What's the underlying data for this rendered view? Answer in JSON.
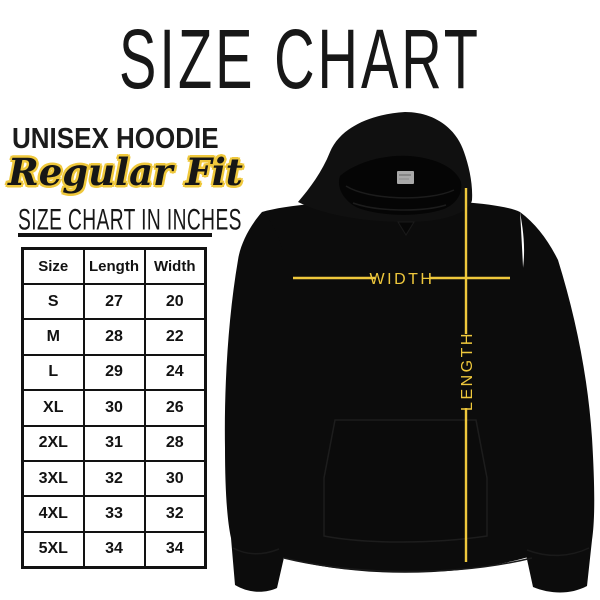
{
  "title": "SIZE CHART",
  "product": {
    "name": "UNISEX HOODIE",
    "fit": "Regular Fit"
  },
  "table_caption": "SIZE CHART IN INCHES",
  "size_table": {
    "columns": [
      "Size",
      "Length",
      "Width"
    ],
    "rows": [
      [
        "S",
        "27",
        "20"
      ],
      [
        "M",
        "28",
        "22"
      ],
      [
        "L",
        "29",
        "24"
      ],
      [
        "XL",
        "30",
        "26"
      ],
      [
        "2XL",
        "31",
        "28"
      ],
      [
        "3XL",
        "32",
        "30"
      ],
      [
        "4XL",
        "33",
        "32"
      ],
      [
        "5XL",
        "34",
        "34"
      ]
    ]
  },
  "measurements": {
    "width_label": "WIDTH",
    "length_label": "LENGTH"
  },
  "colors": {
    "accent_yellow": "#EFC83C",
    "ink_black": "#141414",
    "hoodie_black": "#0c0c0c",
    "tag_gray": "#a9a9a9"
  },
  "chart_data": {
    "type": "table",
    "title": "SIZE CHART",
    "subtitle": "UNISEX HOODIE — Regular Fit",
    "units": "inches",
    "columns": [
      "Size",
      "Length",
      "Width"
    ],
    "rows": [
      [
        "S",
        27,
        20
      ],
      [
        "M",
        28,
        22
      ],
      [
        "L",
        29,
        24
      ],
      [
        "XL",
        30,
        26
      ],
      [
        "2XL",
        31,
        28
      ],
      [
        "3XL",
        32,
        30
      ],
      [
        "4XL",
        33,
        32
      ],
      [
        "5XL",
        34,
        34
      ]
    ]
  }
}
